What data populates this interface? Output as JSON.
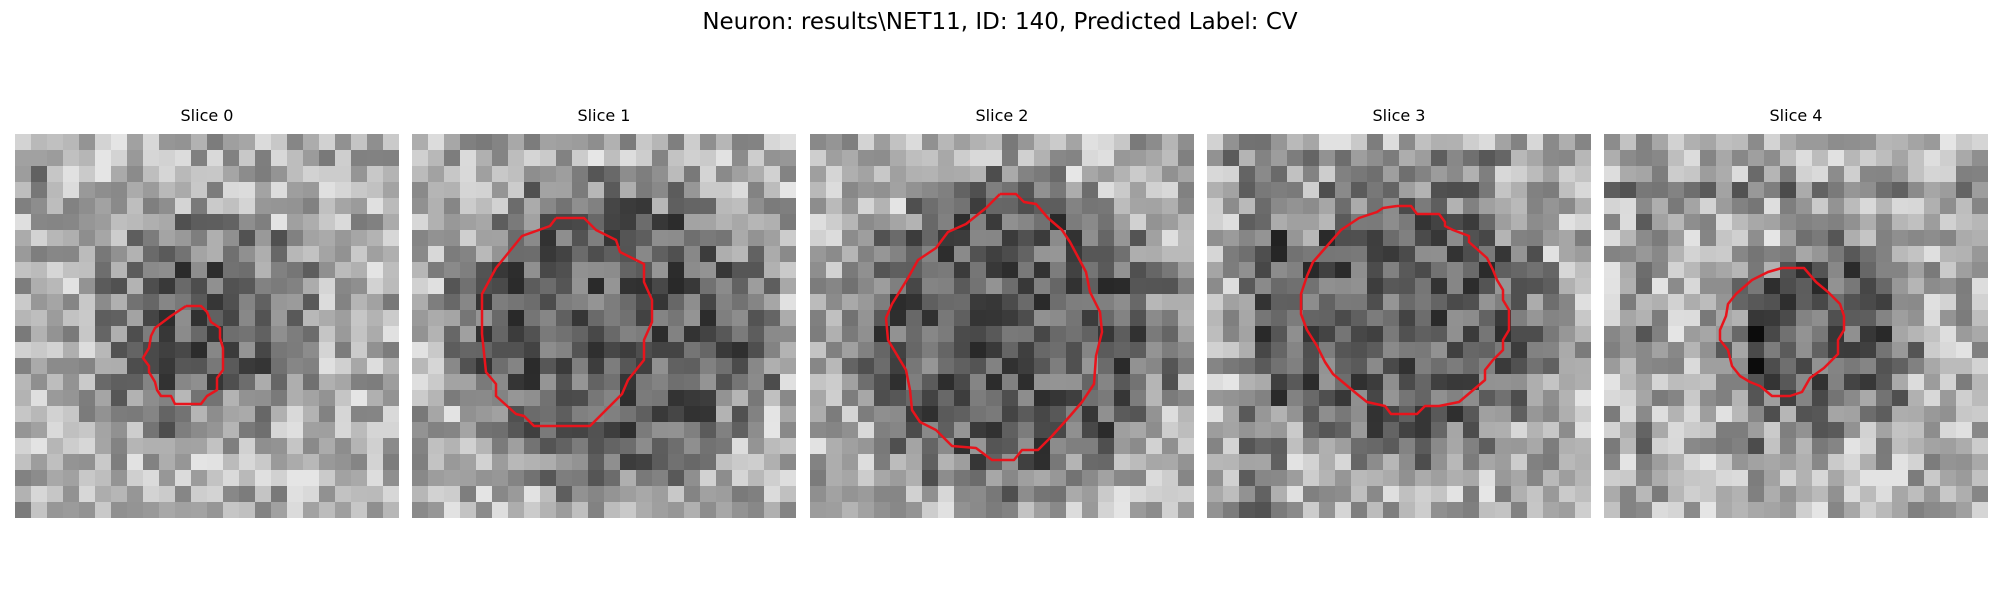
{
  "figure": {
    "title": "Neuron: results\\NET11, ID: 140, Predicted Label: CV"
  },
  "colors": {
    "contour": "#e8141c"
  },
  "slices": [
    {
      "label": "Slice 0"
    },
    {
      "label": "Slice 1"
    },
    {
      "label": "Slice 2"
    },
    {
      "label": "Slice 3"
    },
    {
      "label": "Slice 4"
    }
  ]
}
